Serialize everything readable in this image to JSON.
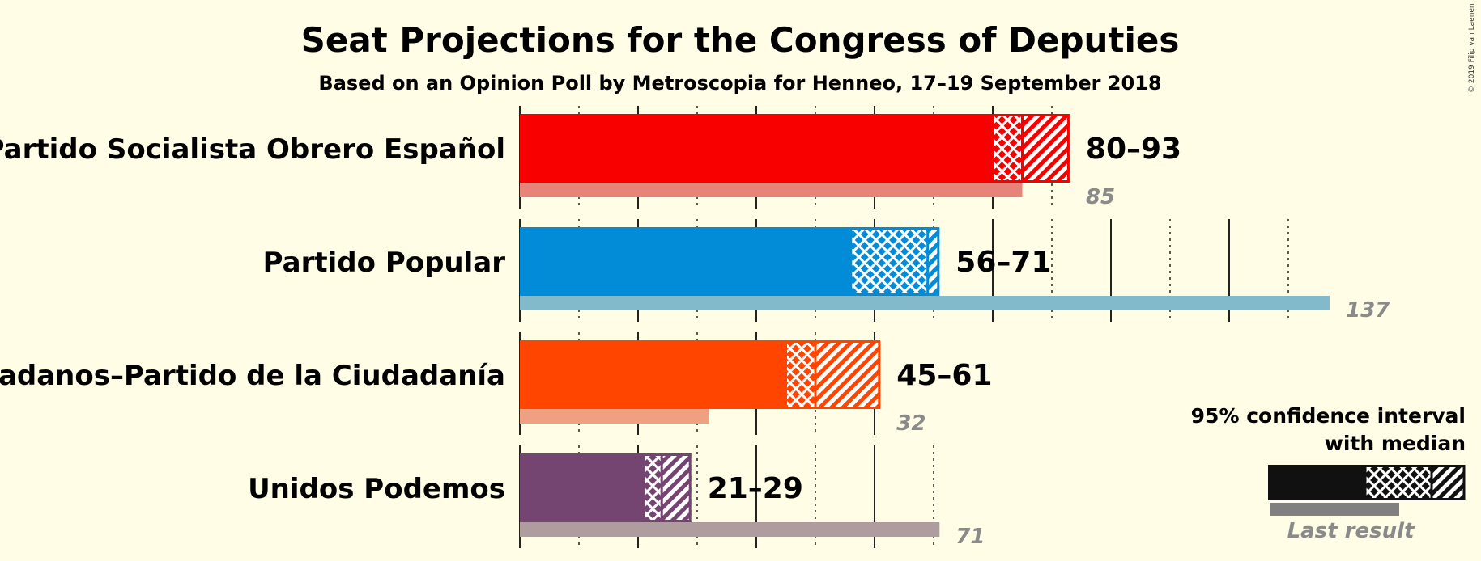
{
  "chart_data": {
    "type": "bar",
    "title": "Seat Projections for the Congress of Deputies",
    "subtitle": "Based on an Opinion Poll by Metroscopia for Henneo, 17–19 September 2018",
    "copyright": "© 2019 Filip van Laenen",
    "x_range": [
      0,
      140
    ],
    "gridline_step": 10,
    "parties": [
      {
        "name": "Partido Socialista Obrero Español",
        "low": 80,
        "median": 85,
        "high": 93,
        "range_label": "80–93",
        "last_result": 85,
        "last_label": "85",
        "color": "#F90000",
        "last_color": "#E8837A"
      },
      {
        "name": "Partido Popular",
        "low": 56,
        "median": 69,
        "high": 71,
        "range_label": "56–71",
        "last_result": 137,
        "last_label": "137",
        "color": "#028CD8",
        "last_color": "#82B9CB"
      },
      {
        "name": "Ciudadanos–Partido de la Ciudadanía",
        "low": 45,
        "median": 50,
        "high": 61,
        "range_label": "45–61",
        "last_result": 32,
        "last_label": "32",
        "color": "#FF4500",
        "last_color": "#EFA080"
      },
      {
        "name": "Unidos Podemos",
        "low": 21,
        "median": 24,
        "high": 29,
        "range_label": "21–29",
        "last_result": 71,
        "last_label": "71",
        "color": "#744570",
        "last_color": "#AE9C9E"
      }
    ],
    "legend": {
      "line1": "95% confidence interval",
      "line2": "with median",
      "last_result": "Last result",
      "color": "#111111",
      "last_color": "#808080"
    }
  }
}
